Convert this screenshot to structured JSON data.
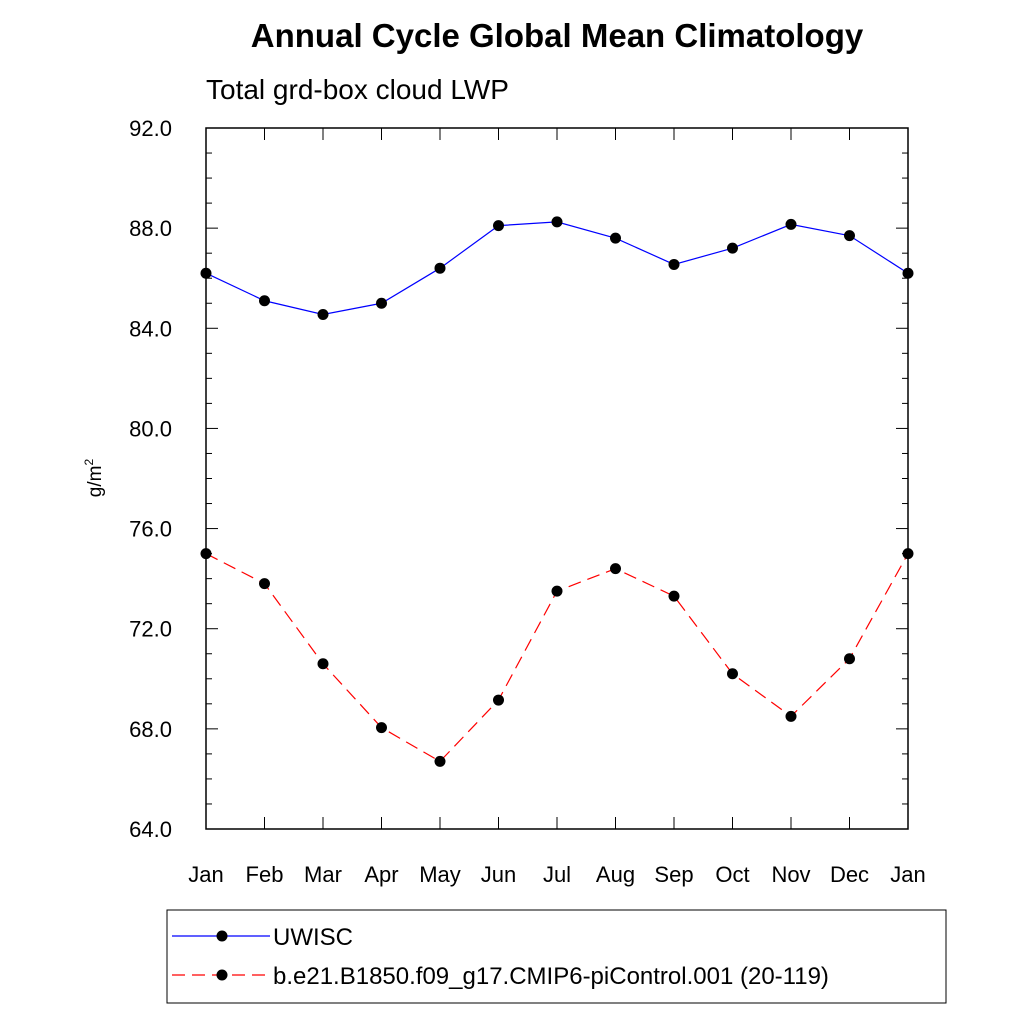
{
  "chart_data": {
    "type": "line",
    "title": "Annual Cycle Global Mean Climatology",
    "subtitle": "Total grd-box cloud LWP",
    "ylabel": "g/m",
    "ylabel_superscript": "2",
    "xlabel": "",
    "categories": [
      "Jan",
      "Feb",
      "Mar",
      "Apr",
      "May",
      "Jun",
      "Jul",
      "Aug",
      "Sep",
      "Oct",
      "Nov",
      "Dec",
      "Jan"
    ],
    "ylim": [
      64.0,
      92.0
    ],
    "yticks": [
      "64.0",
      "68.0",
      "72.0",
      "76.0",
      "80.0",
      "84.0",
      "88.0",
      "92.0"
    ],
    "grid": false,
    "legend_position": "bottom",
    "series": [
      {
        "name": "UWISC",
        "color": "#0000ff",
        "line_style": "solid",
        "marker": "filled-circle",
        "values": [
          86.2,
          85.1,
          84.55,
          85.0,
          86.4,
          88.1,
          88.25,
          87.6,
          86.55,
          87.2,
          88.15,
          87.7,
          86.2
        ]
      },
      {
        "name": "b.e21.B1850.f09_g17.CMIP6-piControl.001 (20-119)",
        "color": "#ff0000",
        "line_style": "dashed",
        "marker": "filled-circle",
        "values": [
          75.0,
          73.8,
          70.6,
          68.05,
          66.7,
          69.15,
          73.5,
          74.4,
          73.3,
          70.2,
          68.5,
          70.8,
          75.0
        ]
      }
    ]
  }
}
